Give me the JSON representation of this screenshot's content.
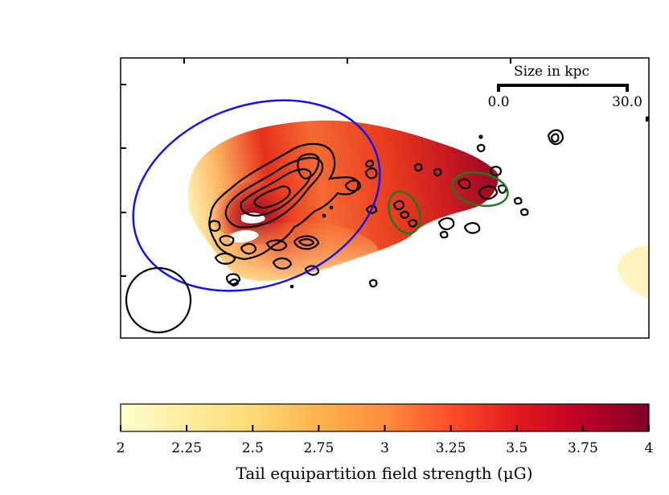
{
  "chart_data": {
    "type": "heatmap",
    "title": "",
    "colorbar": {
      "label": "Tail equipartition field strength (μG)",
      "min": 2,
      "max": 4,
      "ticks": [
        "2",
        "2.25",
        "2.5",
        "2.75",
        "3",
        "3.25",
        "3.5",
        "3.75",
        "4"
      ],
      "colormap": "YlOrRd",
      "stops": [
        "#ffffcc",
        "#ffeda0",
        "#fed976",
        "#feb24c",
        "#fd8d3c",
        "#fc4e2a",
        "#e31a1c",
        "#bd0026",
        "#800026"
      ]
    },
    "scalebar": {
      "title": "Size in kpc",
      "start_label": "0.0",
      "end_label": "30.0"
    },
    "overlays": {
      "blue_ellipse_color": "#1414e6",
      "green_ellipse_color": "#1f7a1f",
      "beam_circle_color": "#000000"
    },
    "axes": {
      "x_tick_labels": [],
      "y_tick_labels": []
    }
  }
}
